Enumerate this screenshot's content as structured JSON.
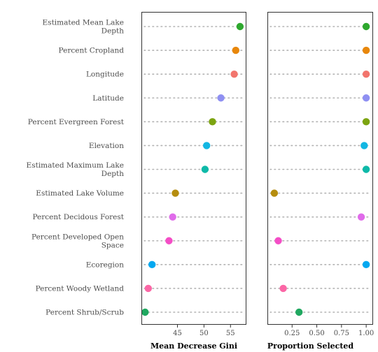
{
  "chart_data": {
    "type": "scatter",
    "variables": [
      {
        "label": "Estimated Mean Lake\nDepth",
        "color": "#2EA82E",
        "gini": 56.8,
        "proportion": 1.0
      },
      {
        "label": "Percent Cropland",
        "color": "#E8870B",
        "gini": 56.0,
        "proportion": 1.0
      },
      {
        "label": "Longitude",
        "color": "#F2756D",
        "gini": 55.7,
        "proportion": 1.0
      },
      {
        "label": "Latitude",
        "color": "#8F90F2",
        "gini": 53.2,
        "proportion": 1.0
      },
      {
        "label": "Percent Evergreen Forest",
        "color": "#7CA411",
        "gini": 51.6,
        "proportion": 1.0
      },
      {
        "label": "Elevation",
        "color": "#13B7E3",
        "gini": 50.5,
        "proportion": 0.98
      },
      {
        "label": "Estimated Maximum Lake\nDepth",
        "color": "#0DB9A8",
        "gini": 50.2,
        "proportion": 1.0
      },
      {
        "label": "Estimated Lake Volume",
        "color": "#B58D0F",
        "gini": 44.6,
        "proportion": 0.07
      },
      {
        "label": "Percent Decidous Forest",
        "color": "#E06BEA",
        "gini": 44.1,
        "proportion": 0.95
      },
      {
        "label": "Percent Developed Open\nSpace",
        "color": "#F44DC6",
        "gini": 43.4,
        "proportion": 0.11
      },
      {
        "label": "Ecoregion",
        "color": "#03A8F0",
        "gini": 40.2,
        "proportion": 1.0
      },
      {
        "label": "Percent Woody Wetland",
        "color": "#FB67A6",
        "gini": 39.5,
        "proportion": 0.16
      },
      {
        "label": "Percent Shrub/Scrub",
        "color": "#20A860",
        "gini": 38.9,
        "proportion": 0.32
      }
    ],
    "panels": [
      {
        "xlabel": "Mean Decrease Gini",
        "xlim": [
          38.2,
          58.0
        ],
        "ticks": [
          45,
          50,
          55
        ],
        "tick_labels": [
          "45",
          "50",
          "55"
        ]
      },
      {
        "xlabel": "Proportion Selected",
        "xlim": [
          0.0,
          1.07
        ],
        "ticks": [
          0.25,
          0.5,
          0.75,
          1.0
        ],
        "tick_labels": [
          "0.25",
          "0.50",
          "0.75",
          "1.00"
        ]
      }
    ]
  }
}
